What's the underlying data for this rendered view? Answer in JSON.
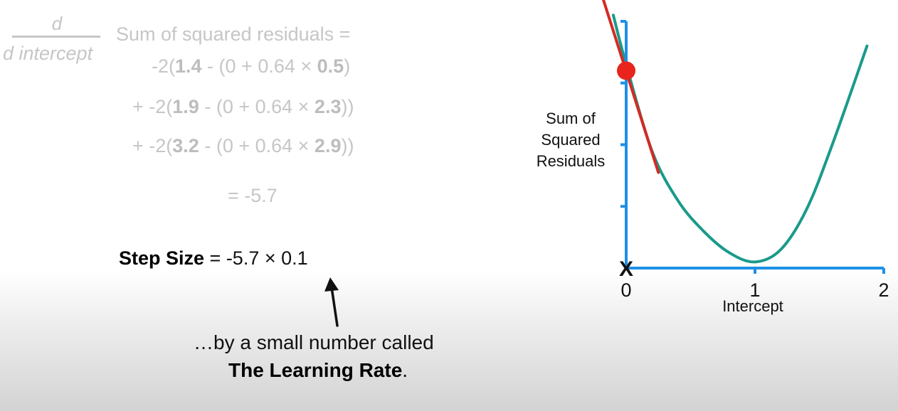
{
  "derivative": {
    "numerator": "d",
    "denominator": "d intercept",
    "label": "Sum of squared residuals ="
  },
  "terms": [
    {
      "prefix": "-2(",
      "observed": "1.4",
      "middle": " - (0 + 0.64 × ",
      "weight": "0.5",
      "suffix": ")"
    },
    {
      "prefix": "+ -2(",
      "observed": "1.9",
      "middle": " - (0 + 0.64 × ",
      "weight": "2.3",
      "suffix": "))"
    },
    {
      "prefix": "+ -2(",
      "observed": "3.2",
      "middle": " - (0 + 0.64 × ",
      "weight": "2.9",
      "suffix": "))"
    }
  ],
  "result": "= -5.7",
  "step_size": {
    "label": "Step Size",
    "expression": " = -5.7 × 0.1"
  },
  "caption": {
    "line1": "…by a small number called",
    "line2": "The Learning Rate",
    "line2_suffix": "."
  },
  "chart_data": {
    "type": "line",
    "xlabel": "Intercept",
    "ylabel_lines": [
      "Sum of",
      "Squared",
      "Residuals"
    ],
    "xlim": [
      0,
      2
    ],
    "x_ticks": [
      "0",
      "1",
      "2"
    ],
    "ylim": [
      0,
      4
    ],
    "series": [
      {
        "color": "#1a9a8a",
        "x": [
          -0.1,
          0.0,
          0.2,
          0.4,
          0.6,
          0.8,
          1.0,
          1.2,
          1.4,
          1.6,
          1.87
        ],
        "y": [
          4.1,
          3.3,
          1.9,
          1.1,
          0.6,
          0.25,
          0.1,
          0.3,
          0.95,
          2.0,
          3.6
        ]
      }
    ],
    "current_point": {
      "x": 0,
      "y": 3.2,
      "color": "#e8241c"
    },
    "tangent_line": {
      "color": "#d42a23",
      "x": [
        -0.2,
        0.25
      ],
      "y": [
        4.5,
        1.55
      ]
    },
    "x_marker": {
      "x": 0,
      "label": "X",
      "color": "#e8241c"
    },
    "axis_color": "#1e8fe6"
  }
}
